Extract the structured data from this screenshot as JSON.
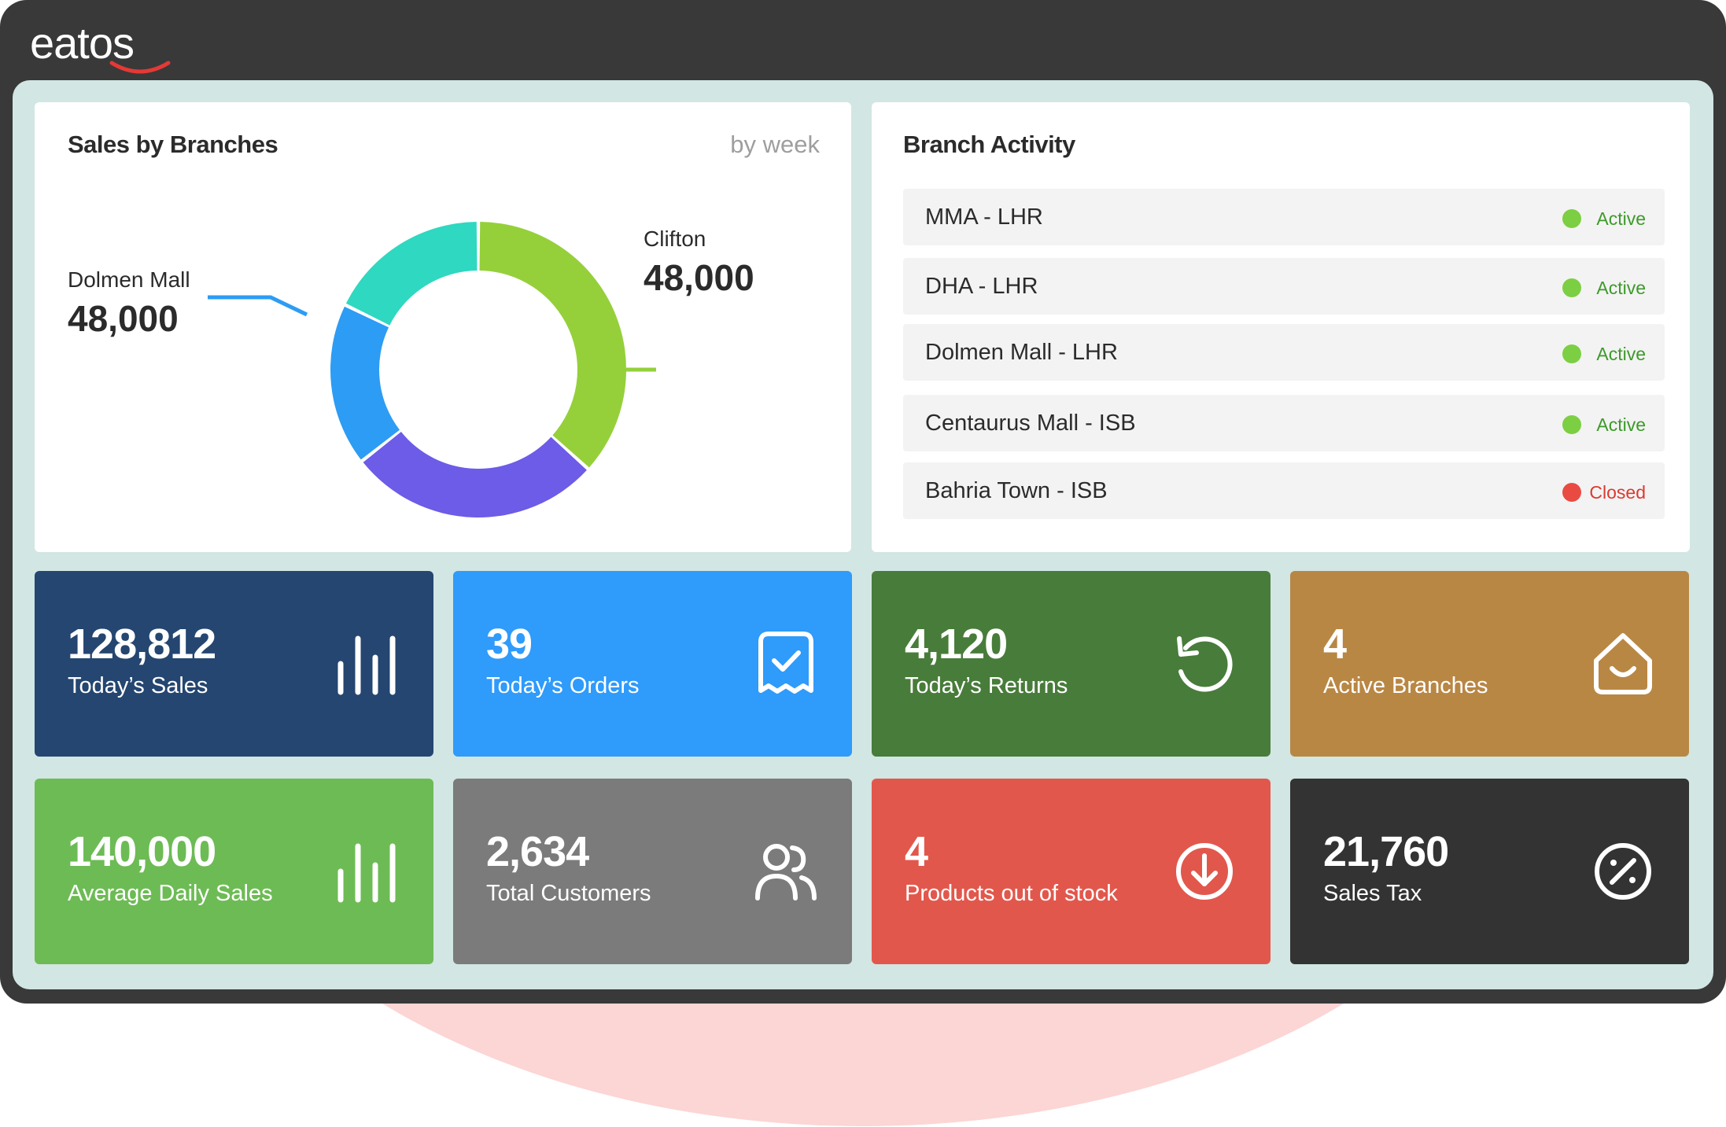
{
  "app": {
    "logo_text": "eatos"
  },
  "sales_by_branches": {
    "title": "Sales by Branches",
    "filter": "by week",
    "labels": [
      {
        "name": "Dolmen Mall",
        "value": "48,000"
      },
      {
        "name": "Clifton",
        "value": "48,000"
      }
    ],
    "segments": [
      {
        "color": "#95d03a",
        "share": 0.367
      },
      {
        "color": "#6c5ce7",
        "share": 0.277
      },
      {
        "color": "#2d9cf4",
        "share": 0.178
      },
      {
        "color": "#2fd8c0",
        "share": 0.178
      }
    ]
  },
  "branch_activity": {
    "title": "Branch Activity",
    "branches": [
      {
        "name": "MMA - LHR",
        "status": "Active",
        "status_color": "#3d9a2a",
        "dot_color": "#7ccf42"
      },
      {
        "name": "DHA - LHR",
        "status": "Active",
        "status_color": "#3d9a2a",
        "dot_color": "#7ccf42"
      },
      {
        "name": "Dolmen Mall - LHR",
        "status": "Active",
        "status_color": "#3d9a2a",
        "dot_color": "#7ccf42"
      },
      {
        "name": "Centaurus Mall - ISB",
        "status": "Active",
        "status_color": "#3d9a2a",
        "dot_color": "#7ccf42"
      },
      {
        "name": "Bahria Town - ISB",
        "status": "Closed",
        "status_color": "#d93b32",
        "dot_color": "#e94b42"
      }
    ]
  },
  "stats": [
    {
      "value": "128,812",
      "label": "Today’s Sales",
      "color": "#244670",
      "icon": "bar-chart-icon"
    },
    {
      "value": "39",
      "label": "Today’s Orders",
      "color": "#2f9bfb",
      "icon": "receipt-check-icon"
    },
    {
      "value": "4,120",
      "label": "Today’s Returns",
      "color": "#487c3a",
      "icon": "return-icon"
    },
    {
      "value": "4",
      "label": "Active Branches",
      "color": "#b98744",
      "icon": "store-icon"
    },
    {
      "value": "140,000",
      "label": "Average Daily Sales",
      "color": "#6dbb55",
      "icon": "bar-chart-icon"
    },
    {
      "value": "2,634",
      "label": "Total Customers",
      "color": "#7b7b7b",
      "icon": "users-icon"
    },
    {
      "value": "4",
      "label": "Products out of stock",
      "color": "#e2574c",
      "icon": "download-circle-icon"
    },
    {
      "value": "21,760",
      "label": "Sales Tax",
      "color": "#333333",
      "icon": "percent-circle-icon"
    }
  ]
}
